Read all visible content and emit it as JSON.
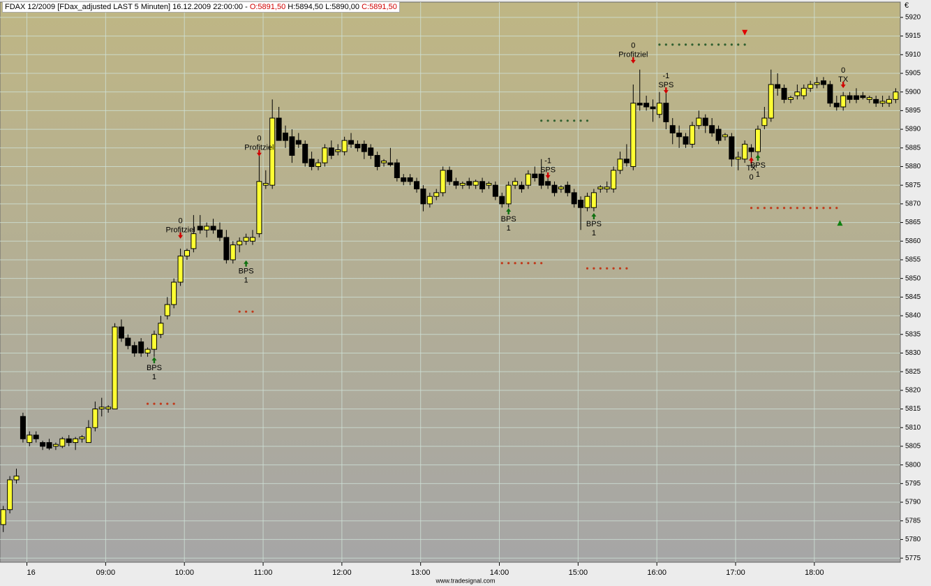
{
  "chart_data": {
    "type": "candlestick",
    "title": "FDAX 12/2009 [FDax_adjusted LAST 5 Minuten] 16.12.2009 22:00:00 -",
    "open_label": "O:5891,50",
    "high_label": "H:5894,50",
    "low_label": "L:5890,00",
    "close_label": "C:5891,50",
    "currency": "€",
    "footer": "www.tradesignal.com",
    "up_color": "#ffff33",
    "down_color": "#000000",
    "xlim": [
      -0.5,
      136.7
    ],
    "xticks": [
      {
        "value": 3.6,
        "label": "16"
      },
      {
        "value": 15.6,
        "label": "09:00"
      },
      {
        "value": 27.6,
        "label": "10:00"
      },
      {
        "value": 39.6,
        "label": "11:00"
      },
      {
        "value": 51.6,
        "label": "12:00"
      },
      {
        "value": 63.6,
        "label": "13:00"
      },
      {
        "value": 75.6,
        "label": "14:00"
      },
      {
        "value": 87.6,
        "label": "15:00"
      },
      {
        "value": 99.6,
        "label": "16:00"
      },
      {
        "value": 111.6,
        "label": "17:00"
      },
      {
        "value": 123.6,
        "label": "18:00"
      }
    ],
    "ylim": [
      5773.9,
      5924.1
    ],
    "yticks": [
      5775,
      5780,
      5785,
      5790,
      5795,
      5800,
      5805,
      5810,
      5815,
      5820,
      5825,
      5830,
      5835,
      5840,
      5845,
      5850,
      5855,
      5860,
      5865,
      5870,
      5875,
      5880,
      5885,
      5890,
      5895,
      5900,
      5905,
      5910,
      5915,
      5920
    ],
    "grid": true,
    "ohlc": [
      [
        5784,
        5789,
        5782,
        5788
      ],
      [
        5788,
        5797,
        5787,
        5796
      ],
      [
        5796,
        5799,
        5795,
        5797
      ],
      [
        5813,
        5814,
        5806,
        5807
      ],
      [
        5806,
        5809,
        5805,
        5808
      ],
      [
        5808,
        5809,
        5806,
        5807
      ],
      [
        5806,
        5806.5,
        5804,
        5805
      ],
      [
        5806,
        5807,
        5804,
        5804.5
      ],
      [
        5805,
        5806,
        5804,
        5805.5
      ],
      [
        5805,
        5807.5,
        5804.5,
        5807
      ],
      [
        5807,
        5808,
        5805,
        5806
      ],
      [
        5806,
        5807.5,
        5804,
        5807
      ],
      [
        5807,
        5808,
        5806,
        5807.5
      ],
      [
        5806,
        5812,
        5806,
        5810
      ],
      [
        5810,
        5817,
        5809,
        5815
      ],
      [
        5815,
        5818,
        5813,
        5815.5
      ],
      [
        5815,
        5816,
        5814,
        5815.5
      ],
      [
        5815,
        5838,
        5815,
        5837
      ],
      [
        5837,
        5839,
        5833,
        5834
      ],
      [
        5834,
        5835,
        5831,
        5832
      ],
      [
        5832,
        5833,
        5829,
        5830
      ],
      [
        5833,
        5834,
        5829,
        5830
      ],
      [
        5830,
        5831.5,
        5829,
        5831
      ],
      [
        5831,
        5836,
        5829,
        5835
      ],
      [
        5835,
        5840,
        5834,
        5838
      ],
      [
        5840,
        5845,
        5839,
        5843
      ],
      [
        5843,
        5850,
        5842,
        5849
      ],
      [
        5849,
        5858,
        5848,
        5856
      ],
      [
        5856,
        5858,
        5855,
        5857.5
      ],
      [
        5858,
        5867,
        5857,
        5862
      ],
      [
        5864,
        5867,
        5862,
        5863
      ],
      [
        5863,
        5865,
        5861,
        5864
      ],
      [
        5864,
        5866,
        5862,
        5863
      ],
      [
        5863,
        5865,
        5860,
        5861
      ],
      [
        5861,
        5863,
        5854,
        5855
      ],
      [
        5855,
        5860,
        5854,
        5859
      ],
      [
        5859,
        5861,
        5857,
        5860
      ],
      [
        5860,
        5862,
        5859,
        5861
      ],
      [
        5860,
        5863,
        5859,
        5861
      ],
      [
        5862,
        5883,
        5861,
        5876
      ],
      [
        5875,
        5879,
        5874,
        5875.5
      ],
      [
        5875,
        5898,
        5874,
        5893
      ],
      [
        5893,
        5896,
        5887,
        5887
      ],
      [
        5889,
        5891,
        5885,
        5887
      ],
      [
        5888,
        5890,
        5881,
        5883
      ],
      [
        5887,
        5889,
        5885,
        5886
      ],
      [
        5886,
        5887,
        5880,
        5881
      ],
      [
        5882,
        5884,
        5879,
        5880
      ],
      [
        5880,
        5882,
        5879,
        5881
      ],
      [
        5881,
        5886,
        5880,
        5885
      ],
      [
        5885,
        5887,
        5882,
        5883
      ],
      [
        5884,
        5886,
        5883,
        5884.5
      ],
      [
        5884,
        5888,
        5883,
        5887
      ],
      [
        5887,
        5889,
        5885,
        5886
      ],
      [
        5886,
        5887,
        5884,
        5885
      ],
      [
        5886,
        5887,
        5882,
        5884
      ],
      [
        5885,
        5886,
        5882,
        5883
      ],
      [
        5883,
        5884,
        5879,
        5880
      ],
      [
        5881,
        5882,
        5880,
        5881.5
      ],
      [
        5881,
        5885,
        5880,
        5880.5
      ],
      [
        5881,
        5882,
        5876,
        5877
      ],
      [
        5877,
        5878,
        5875,
        5876
      ],
      [
        5877,
        5878,
        5875,
        5876
      ],
      [
        5876,
        5877,
        5873,
        5874
      ],
      [
        5874,
        5875,
        5868,
        5870
      ],
      [
        5870,
        5873,
        5869,
        5872
      ],
      [
        5872,
        5874,
        5871,
        5873
      ],
      [
        5873,
        5880,
        5872,
        5879
      ],
      [
        5879,
        5880,
        5875,
        5876
      ],
      [
        5876,
        5877,
        5874,
        5875
      ],
      [
        5875,
        5876,
        5874,
        5875.5
      ],
      [
        5876,
        5877,
        5874,
        5875
      ],
      [
        5875,
        5876.5,
        5874,
        5876
      ],
      [
        5876,
        5877,
        5873,
        5874
      ],
      [
        5875,
        5876,
        5874,
        5875.5
      ],
      [
        5875,
        5876,
        5871,
        5872
      ],
      [
        5872,
        5873,
        5869,
        5870
      ],
      [
        5870,
        5876,
        5869,
        5875
      ],
      [
        5875,
        5877,
        5874,
        5876
      ],
      [
        5875,
        5876,
        5873,
        5874
      ],
      [
        5875,
        5879,
        5874,
        5878
      ],
      [
        5878,
        5880,
        5876,
        5877
      ],
      [
        5878,
        5882,
        5874,
        5875
      ],
      [
        5876,
        5877,
        5874,
        5875
      ],
      [
        5875,
        5876,
        5872,
        5873
      ],
      [
        5874,
        5875,
        5873,
        5874.5
      ],
      [
        5875,
        5876,
        5872,
        5873
      ],
      [
        5873,
        5874,
        5869,
        5870
      ],
      [
        5871,
        5872,
        5863,
        5869
      ],
      [
        5869,
        5873,
        5868,
        5872
      ],
      [
        5869,
        5874,
        5868,
        5873
      ],
      [
        5874,
        5875,
        5873,
        5874.5
      ],
      [
        5874,
        5876,
        5873,
        5874.5
      ],
      [
        5874,
        5880,
        5873,
        5879
      ],
      [
        5879,
        5884,
        5878,
        5882
      ],
      [
        5882,
        5886,
        5880,
        5881
      ],
      [
        5880,
        5902,
        5879,
        5897
      ],
      [
        5897,
        5906,
        5895,
        5896.5
      ],
      [
        5897,
        5899,
        5895,
        5896
      ],
      [
        5896,
        5898,
        5892,
        5895.5
      ],
      [
        5894,
        5900,
        5893,
        5897
      ],
      [
        5897,
        5900,
        5890,
        5892
      ],
      [
        5891,
        5893,
        5886,
        5889
      ],
      [
        5889,
        5891,
        5885,
        5888
      ],
      [
        5888,
        5889,
        5885,
        5886
      ],
      [
        5886,
        5892,
        5885,
        5891
      ],
      [
        5891,
        5895,
        5890,
        5893
      ],
      [
        5893,
        5894,
        5889,
        5891
      ],
      [
        5891,
        5893,
        5888,
        5889
      ],
      [
        5890,
        5891,
        5886,
        5887
      ],
      [
        5888,
        5889,
        5887,
        5888.5
      ],
      [
        5888,
        5889,
        5880,
        5882
      ],
      [
        5882,
        5884,
        5879,
        5882.5
      ],
      [
        5882,
        5887,
        5881,
        5886
      ],
      [
        5885,
        5886,
        5882,
        5884
      ],
      [
        5884,
        5891,
        5883,
        5890
      ],
      [
        5891,
        5896,
        5890,
        5893
      ],
      [
        5893,
        5906,
        5892,
        5902
      ],
      [
        5902,
        5905,
        5899,
        5901
      ],
      [
        5901,
        5902,
        5897,
        5898
      ],
      [
        5898,
        5899,
        5897,
        5898.5
      ],
      [
        5899,
        5902,
        5898,
        5900
      ],
      [
        5899,
        5902,
        5898,
        5901
      ],
      [
        5901,
        5903,
        5900,
        5902
      ],
      [
        5902,
        5904,
        5901,
        5902.5
      ],
      [
        5903,
        5904,
        5901,
        5902
      ],
      [
        5902,
        5903,
        5896,
        5897
      ],
      [
        5897,
        5899,
        5895,
        5896
      ],
      [
        5896,
        5900,
        5895,
        5899
      ],
      [
        5899,
        5900,
        5897,
        5898
      ],
      [
        5899,
        5901,
        5897,
        5898
      ],
      [
        5899,
        5900,
        5898,
        5898.5
      ],
      [
        5898,
        5899,
        5897,
        5898.5
      ],
      [
        5898,
        5899,
        5896,
        5897
      ],
      [
        5897,
        5899,
        5896,
        5897.5
      ],
      [
        5897,
        5899,
        5896,
        5898
      ],
      [
        5898,
        5901,
        5897,
        5900
      ]
    ],
    "levels": [
      {
        "value": 5816.4,
        "from": 22,
        "to": 26,
        "color": "#c0391b"
      },
      {
        "value": 5841.1,
        "from": 36,
        "to": 38,
        "color": "#c0391b"
      },
      {
        "value": 5854.1,
        "from": 76,
        "to": 82,
        "color": "#c0391b"
      },
      {
        "value": 5892.3,
        "from": 82,
        "to": 89,
        "color": "#2f5f2f"
      },
      {
        "value": 5852.7,
        "from": 89,
        "to": 95,
        "color": "#c0391b"
      },
      {
        "value": 5912.7,
        "from": 100,
        "to": 113,
        "color": "#2f5f2f"
      },
      {
        "value": 5868.9,
        "from": 114,
        "to": 127,
        "color": "#c0391b"
      }
    ],
    "markers": [
      {
        "index": 113,
        "price": 5915.9,
        "shape": "down",
        "color": "#e00000"
      },
      {
        "index": 127.5,
        "price": 5864.9,
        "shape": "up",
        "color": "#108010"
      }
    ],
    "signals": [
      {
        "index": 23,
        "price": 5828.2,
        "direction": "up",
        "color": "#107010",
        "labels": [
          "BPS",
          "1"
        ]
      },
      {
        "index": 27,
        "price": 5861.4,
        "direction": "down",
        "color": "#d00000",
        "labels": [
          "0",
          "Profitziel"
        ]
      },
      {
        "index": 37,
        "price": 5854.1,
        "direction": "up",
        "color": "#107010",
        "labels": [
          "BPS",
          "1"
        ]
      },
      {
        "index": 39,
        "price": 5883.5,
        "direction": "down",
        "color": "#d00000",
        "labels": [
          "0",
          "Profitziel"
        ]
      },
      {
        "index": 77,
        "price": 5868.1,
        "direction": "up",
        "color": "#107010",
        "labels": [
          "BPS",
          "1"
        ]
      },
      {
        "index": 83,
        "price": 5877.5,
        "direction": "down",
        "color": "#d00000",
        "labels": [
          "-1",
          "SPS"
        ]
      },
      {
        "index": 90,
        "price": 5866.8,
        "direction": "up",
        "color": "#107010",
        "labels": [
          "BPS",
          "1"
        ]
      },
      {
        "index": 96,
        "price": 5908.4,
        "direction": "down",
        "color": "#d00000",
        "labels": [
          "0",
          "Profitziel"
        ]
      },
      {
        "index": 101,
        "price": 5900.3,
        "direction": "down",
        "color": "#d00000",
        "labels": [
          "-1",
          "SPS"
        ]
      },
      {
        "index": 114,
        "price": 5881.8,
        "direction": "up",
        "color": "#d00000",
        "labels": [
          "TX",
          "0"
        ]
      },
      {
        "index": 115,
        "price": 5882.5,
        "direction": "up",
        "color": "#107010",
        "labels": [
          "BPS",
          "1"
        ]
      },
      {
        "index": 128,
        "price": 5901.8,
        "direction": "down",
        "color": "#d00000",
        "labels": [
          "0",
          "TX"
        ]
      }
    ]
  }
}
